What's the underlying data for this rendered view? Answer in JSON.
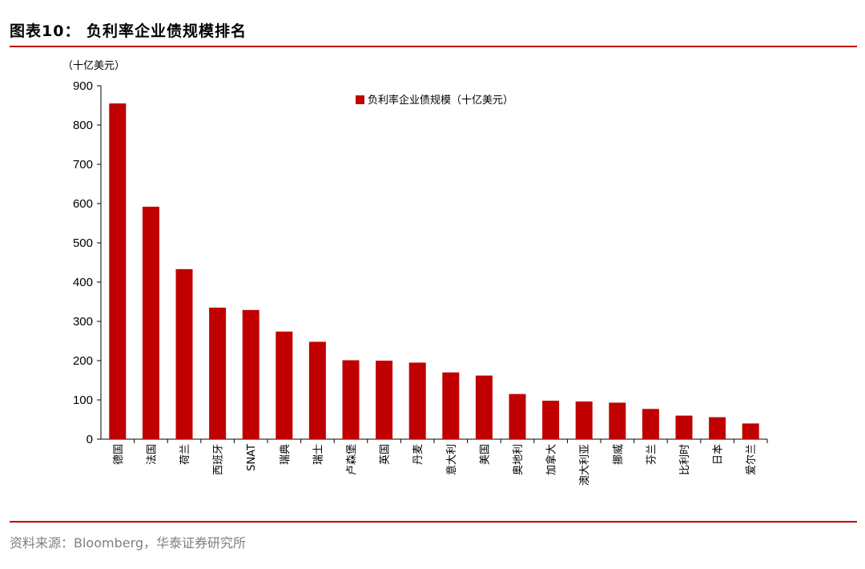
{
  "header": {
    "title": "图表10： 负利率企业债规模排名"
  },
  "footer": {
    "source": "资料来源：Bloomberg，华泰证券研究所"
  },
  "colors": {
    "bar": "#c00000",
    "rule": "#c00000",
    "axis": "#000000"
  },
  "chart_data": {
    "type": "bar",
    "unit_label": "（十亿美元）",
    "categories": [
      "德国",
      "法国",
      "荷兰",
      "西班牙",
      "SNAT",
      "瑞典",
      "瑞士",
      "卢森堡",
      "英国",
      "丹麦",
      "意大利",
      "美国",
      "奥地利",
      "加拿大",
      "澳大利亚",
      "挪威",
      "芬兰",
      "比利时",
      "日本",
      "爱尔兰"
    ],
    "series": [
      {
        "name": "负利率企业债规模（十亿美元）",
        "values": [
          855,
          592,
          433,
          335,
          329,
          274,
          248,
          201,
          200,
          195,
          170,
          162,
          115,
          98,
          96,
          93,
          77,
          60,
          56,
          40
        ]
      }
    ],
    "yticks": [
      0,
      100,
      200,
      300,
      400,
      500,
      600,
      700,
      800,
      900
    ],
    "ylim": [
      0,
      900
    ],
    "grid": false,
    "legend_position": "top-center"
  }
}
